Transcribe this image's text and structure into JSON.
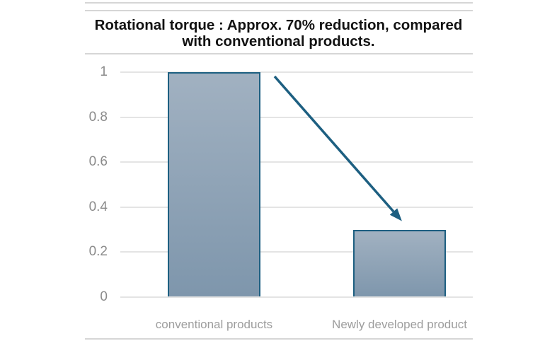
{
  "chart_data": {
    "type": "bar",
    "title": "Rotational torque : Approx. 70% reduction, compared with conventional products.",
    "title_lines": [
      "Rotational torque : Approx. 70% reduction, compared",
      "with conventional products."
    ],
    "categories": [
      "conventional products",
      "Newly developed product"
    ],
    "values": [
      1,
      0.3
    ],
    "xlabel": "",
    "ylabel": "",
    "ylim": [
      0,
      1
    ],
    "ytick_values": [
      0,
      0.2,
      0.4,
      0.6,
      0.8,
      1
    ],
    "ytick_labels": [
      "0",
      "0.2",
      "0.4",
      "0.6",
      "0.8",
      "1"
    ],
    "grid": true,
    "legend": "none",
    "annotation": {
      "type": "arrow",
      "direction": "down-right",
      "from": "top of conventional products bar",
      "to": "top of Newly developed product bar",
      "meaning": "approx. 70% reduction"
    },
    "colors": {
      "bar_fill_top": "#a1b1c1",
      "bar_fill_bottom": "#7e96ac",
      "bar_border": "#1d5f81",
      "arrow": "#1d5f81",
      "gridline": "#e4e4e4",
      "ytick_color": "#8b8b8b",
      "xtick_color": "#9d9d9d",
      "title_color": "#121212",
      "separator": "#d6d6d6",
      "background": "#ffffff"
    }
  }
}
